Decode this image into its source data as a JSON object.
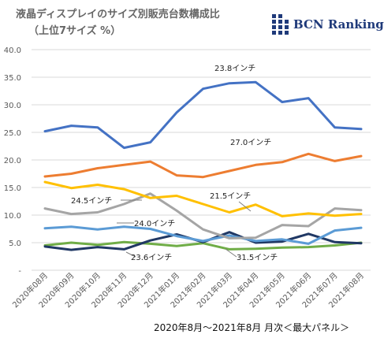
{
  "title_line1": "液晶ディスプレイのサイズ別販売台数構成比",
  "title_line2": "（上位7サイズ %）",
  "logo_text": "BCN Ranking",
  "footer": "2020年8月～2021年8月 月次＜最大パネル＞",
  "chart_data": {
    "type": "line",
    "categories": [
      "2020年08月",
      "2020年09月",
      "2020年10月",
      "2020年11月",
      "2020年12月",
      "2021年01月",
      "2021年02月",
      "2021年03月",
      "2021年04月",
      "2021年05月",
      "2021年06月",
      "2021年07月",
      "2021年08月"
    ],
    "ylim": [
      0,
      40
    ],
    "yticks": [
      0,
      5,
      10,
      15,
      20,
      25,
      30,
      35,
      40
    ],
    "ytick_labels": [
      "-",
      "5.0",
      "10.0",
      "15.0",
      "20.0",
      "25.0",
      "30.0",
      "35.0",
      "40.0"
    ],
    "grid": true,
    "series": [
      {
        "name": "23.8インチ",
        "color": "#4472c4",
        "values": [
          25.2,
          26.2,
          25.9,
          22.2,
          23.2,
          28.6,
          32.9,
          33.9,
          34.1,
          30.5,
          31.2,
          25.9,
          25.6
        ]
      },
      {
        "name": "27.0インチ",
        "color": "#ed7d31",
        "values": [
          17.0,
          17.5,
          18.5,
          19.1,
          19.7,
          17.2,
          16.9,
          18.0,
          19.1,
          19.6,
          21.1,
          19.8,
          20.7
        ]
      },
      {
        "name": "21.5インチ",
        "color": "#ffc000",
        "values": [
          16.0,
          14.9,
          15.5,
          14.7,
          13.1,
          13.5,
          12.0,
          10.5,
          11.9,
          9.8,
          10.3,
          9.9,
          10.2
        ]
      },
      {
        "name": "24.5インチ",
        "color": "#a5a5a5",
        "values": [
          11.2,
          10.2,
          10.5,
          12.0,
          13.9,
          10.8,
          7.4,
          5.8,
          5.9,
          8.2,
          8.0,
          11.2,
          10.9
        ]
      },
      {
        "name": "24.0インチ",
        "color": "#5b9bd5",
        "values": [
          7.6,
          7.9,
          7.4,
          7.9,
          7.5,
          6.2,
          5.3,
          6.3,
          5.3,
          5.6,
          4.8,
          7.2,
          7.7
        ]
      },
      {
        "name": "23.6インチ",
        "color": "#203864",
        "values": [
          4.3,
          3.7,
          4.2,
          3.8,
          5.4,
          6.5,
          5.1,
          6.9,
          5.0,
          5.2,
          6.6,
          5.1,
          4.9
        ]
      },
      {
        "name": "31.5インチ",
        "color": "#70ad47",
        "values": [
          4.5,
          5.0,
          4.6,
          5.1,
          4.8,
          4.4,
          4.9,
          3.8,
          3.9,
          4.1,
          4.2,
          4.5,
          5.0
        ]
      }
    ]
  }
}
